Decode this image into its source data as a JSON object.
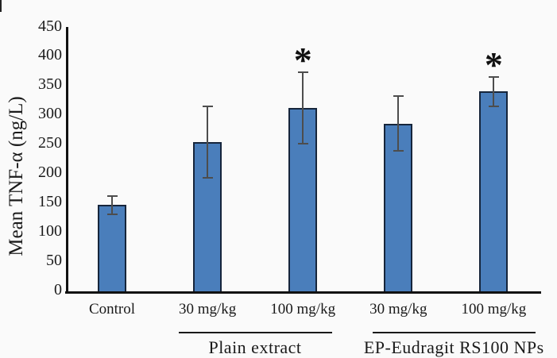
{
  "chart_data": {
    "type": "bar",
    "title": "",
    "xlabel": "",
    "ylabel": "Mean TNF-α (ng/L)",
    "ylim": [
      0,
      450
    ],
    "ytick_interval": 50,
    "yticks": [
      450,
      400,
      350,
      300,
      250,
      200,
      150,
      100,
      50,
      0
    ],
    "grid": false,
    "legend": "none",
    "categories": [
      "Control",
      "30 mg/kg",
      "100 mg/kg",
      "30 mg/kg",
      "100 mg/kg"
    ],
    "series": [
      {
        "name": "Mean TNF-α",
        "values": [
          148,
          255,
          314,
          287,
          342
        ],
        "errors": [
          16,
          61,
          61,
          47,
          25
        ]
      }
    ],
    "significance_markers": [
      {
        "category_index": 2,
        "symbol": "*"
      },
      {
        "category_index": 4,
        "symbol": "*"
      }
    ],
    "group_brackets": [
      {
        "label": "Plain extract",
        "from_index": 1,
        "to_index": 2
      },
      {
        "label": "EP-Eudragit RS100 NPs",
        "from_index": 3,
        "to_index": 4
      }
    ],
    "colors": {
      "bar_fill": "#4A7EBB",
      "bar_border": "#16253B",
      "error_bar": "#4D4D4D",
      "axis": "#111111",
      "text": "#1A1A1A",
      "background": "#FAFAFA"
    }
  }
}
